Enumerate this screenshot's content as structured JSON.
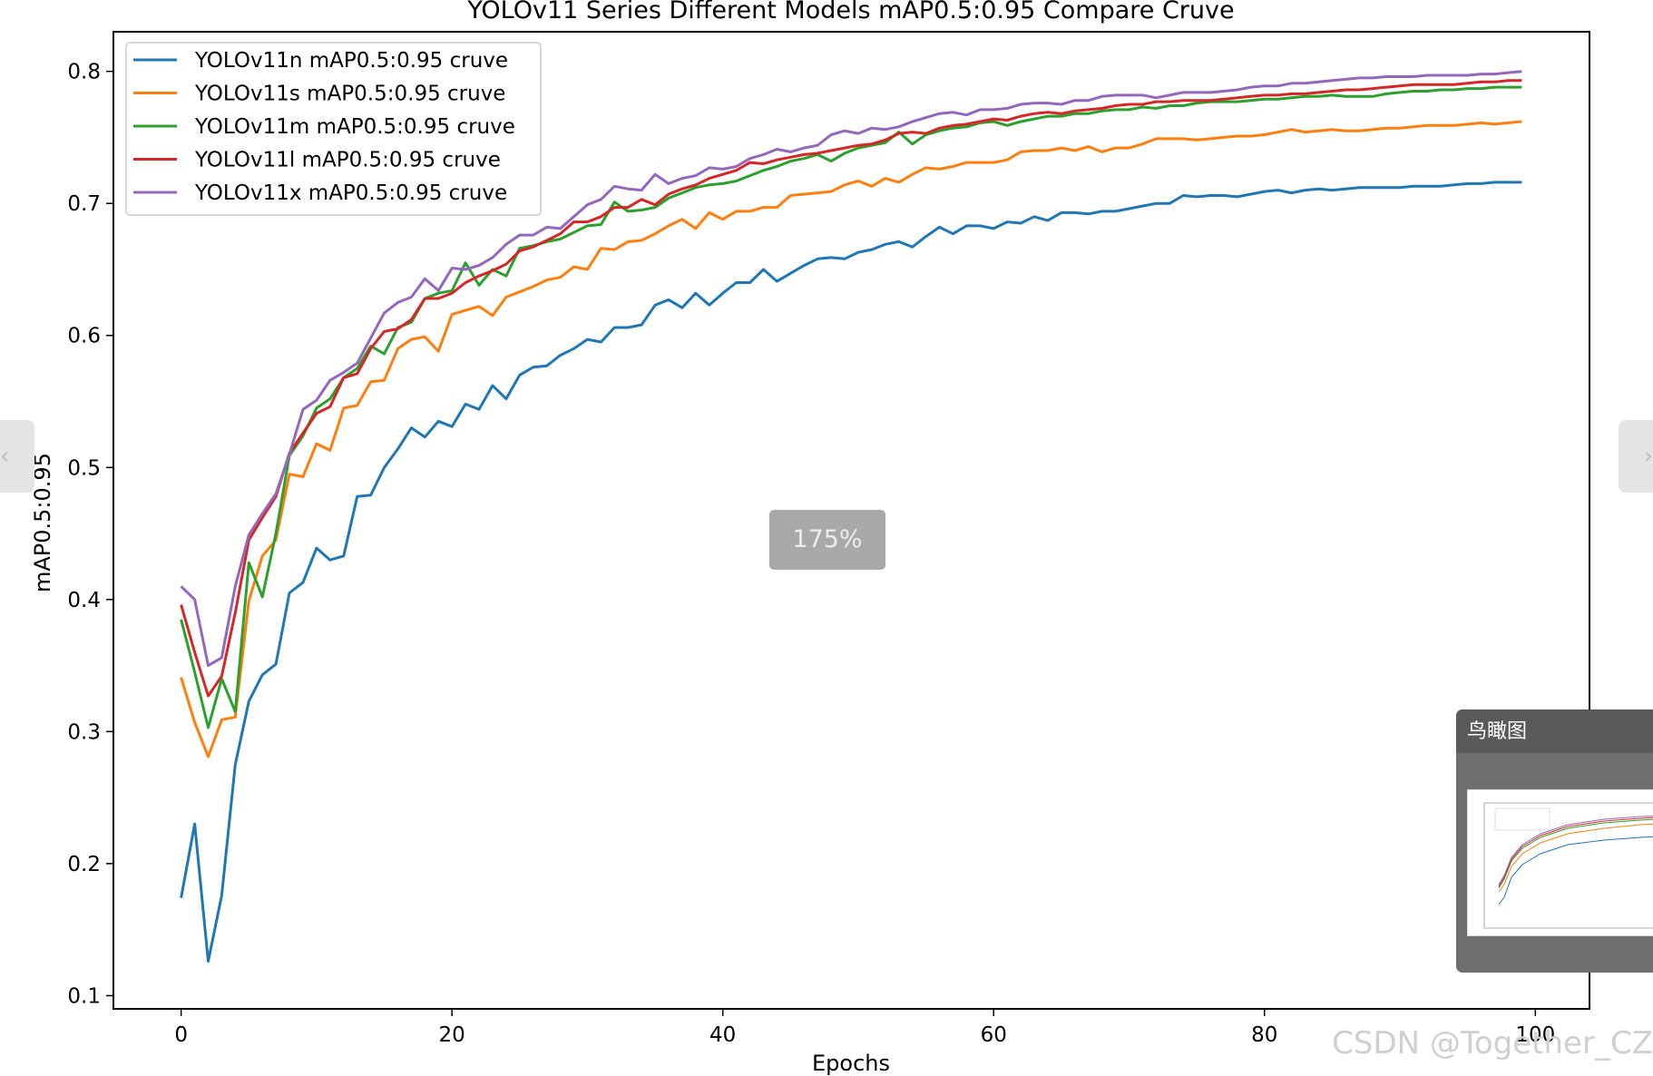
{
  "chart_data": {
    "type": "line",
    "title": "YOLOv11 Series Different Models mAP0.5:0.95 Compare Cruve",
    "xlabel": "Epochs",
    "ylabel": "mAP0.5:0.95",
    "xlim": [
      -5,
      104
    ],
    "ylim": [
      0.09,
      0.83
    ],
    "xticks": [
      0,
      20,
      40,
      60,
      80,
      100
    ],
    "yticks": [
      0.1,
      0.2,
      0.3,
      0.4,
      0.5,
      0.6,
      0.7,
      0.8
    ],
    "xtick_labels": [
      "0",
      "20",
      "40",
      "60",
      "80",
      "100"
    ],
    "ytick_labels": [
      "0.1",
      "0.2",
      "0.3",
      "0.4",
      "0.5",
      "0.6",
      "0.7",
      "0.8"
    ],
    "grid": false,
    "legend_position": "upper-left",
    "series": [
      {
        "name": "YOLOv11n mAP0.5:0.95 cruve",
        "color": "#1f77b4",
        "values": [
          0.174,
          0.23,
          0.126,
          0.176,
          0.275,
          0.323,
          0.343,
          0.351,
          0.405,
          0.413,
          0.439,
          0.43,
          0.433,
          0.478,
          0.479,
          0.5,
          0.514,
          0.53,
          0.523,
          0.535,
          0.531,
          0.548,
          0.544,
          0.562,
          0.552,
          0.57,
          0.576,
          0.577,
          0.585,
          0.59,
          0.597,
          0.595,
          0.606,
          0.606,
          0.608,
          0.623,
          0.627,
          0.621,
          0.632,
          0.623,
          0.632,
          0.64,
          0.64,
          0.65,
          0.641,
          0.647,
          0.653,
          0.658,
          0.659,
          0.658,
          0.663,
          0.665,
          0.669,
          0.671,
          0.667,
          0.675,
          0.682,
          0.677,
          0.683,
          0.683,
          0.681,
          0.686,
          0.685,
          0.69,
          0.687,
          0.693,
          0.693,
          0.692,
          0.694,
          0.694,
          0.696,
          0.698,
          0.7,
          0.7,
          0.706,
          0.705,
          0.706,
          0.706,
          0.705,
          0.707,
          0.709,
          0.71,
          0.708,
          0.71,
          0.711,
          0.71,
          0.711,
          0.712,
          0.712,
          0.712,
          0.712,
          0.713,
          0.713,
          0.713,
          0.714,
          0.715,
          0.715,
          0.716,
          0.716,
          0.716
        ]
      },
      {
        "name": "YOLOv11s mAP0.5:0.95 cruve",
        "color": "#ff7f0e",
        "values": [
          0.341,
          0.307,
          0.281,
          0.309,
          0.311,
          0.399,
          0.433,
          0.445,
          0.495,
          0.493,
          0.518,
          0.513,
          0.545,
          0.547,
          0.565,
          0.566,
          0.59,
          0.597,
          0.599,
          0.588,
          0.616,
          0.619,
          0.622,
          0.615,
          0.629,
          0.633,
          0.637,
          0.642,
          0.644,
          0.652,
          0.65,
          0.666,
          0.665,
          0.671,
          0.672,
          0.677,
          0.683,
          0.688,
          0.681,
          0.693,
          0.688,
          0.694,
          0.694,
          0.697,
          0.697,
          0.706,
          0.707,
          0.708,
          0.709,
          0.714,
          0.717,
          0.713,
          0.719,
          0.716,
          0.722,
          0.727,
          0.726,
          0.728,
          0.731,
          0.731,
          0.731,
          0.733,
          0.739,
          0.74,
          0.74,
          0.742,
          0.74,
          0.743,
          0.739,
          0.742,
          0.742,
          0.745,
          0.749,
          0.749,
          0.749,
          0.748,
          0.749,
          0.75,
          0.751,
          0.751,
          0.752,
          0.754,
          0.756,
          0.754,
          0.755,
          0.756,
          0.755,
          0.755,
          0.756,
          0.757,
          0.757,
          0.758,
          0.759,
          0.759,
          0.759,
          0.76,
          0.761,
          0.76,
          0.761,
          0.762
        ]
      },
      {
        "name": "YOLOv11m mAP0.5:0.95 cruve",
        "color": "#2ca02c",
        "values": [
          0.385,
          0.345,
          0.303,
          0.34,
          0.315,
          0.428,
          0.402,
          0.45,
          0.509,
          0.524,
          0.545,
          0.552,
          0.568,
          0.575,
          0.592,
          0.586,
          0.606,
          0.61,
          0.628,
          0.632,
          0.634,
          0.655,
          0.638,
          0.65,
          0.645,
          0.666,
          0.668,
          0.671,
          0.673,
          0.678,
          0.683,
          0.684,
          0.701,
          0.694,
          0.695,
          0.697,
          0.704,
          0.708,
          0.712,
          0.714,
          0.715,
          0.717,
          0.721,
          0.725,
          0.728,
          0.732,
          0.734,
          0.737,
          0.732,
          0.738,
          0.742,
          0.744,
          0.746,
          0.754,
          0.745,
          0.752,
          0.755,
          0.757,
          0.758,
          0.761,
          0.762,
          0.759,
          0.762,
          0.764,
          0.766,
          0.766,
          0.768,
          0.768,
          0.77,
          0.771,
          0.771,
          0.773,
          0.772,
          0.774,
          0.774,
          0.776,
          0.777,
          0.777,
          0.777,
          0.778,
          0.779,
          0.779,
          0.78,
          0.781,
          0.781,
          0.782,
          0.781,
          0.781,
          0.781,
          0.783,
          0.784,
          0.785,
          0.785,
          0.786,
          0.786,
          0.787,
          0.787,
          0.788,
          0.788,
          0.788
        ]
      },
      {
        "name": "YOLOv11l mAP0.5:0.95 cruve",
        "color": "#d62728",
        "values": [
          0.396,
          0.36,
          0.327,
          0.342,
          0.39,
          0.445,
          0.462,
          0.478,
          0.511,
          0.526,
          0.541,
          0.546,
          0.568,
          0.571,
          0.59,
          0.603,
          0.605,
          0.612,
          0.628,
          0.628,
          0.632,
          0.64,
          0.645,
          0.649,
          0.654,
          0.664,
          0.667,
          0.672,
          0.677,
          0.686,
          0.686,
          0.69,
          0.697,
          0.697,
          0.703,
          0.699,
          0.707,
          0.711,
          0.714,
          0.719,
          0.722,
          0.725,
          0.731,
          0.73,
          0.733,
          0.735,
          0.737,
          0.738,
          0.74,
          0.742,
          0.744,
          0.745,
          0.748,
          0.753,
          0.754,
          0.753,
          0.757,
          0.759,
          0.76,
          0.762,
          0.764,
          0.763,
          0.766,
          0.768,
          0.769,
          0.768,
          0.77,
          0.771,
          0.772,
          0.774,
          0.775,
          0.775,
          0.777,
          0.777,
          0.778,
          0.778,
          0.778,
          0.779,
          0.78,
          0.781,
          0.782,
          0.782,
          0.783,
          0.783,
          0.784,
          0.785,
          0.786,
          0.786,
          0.787,
          0.788,
          0.789,
          0.79,
          0.79,
          0.79,
          0.79,
          0.791,
          0.792,
          0.792,
          0.793,
          0.793
        ]
      },
      {
        "name": "YOLOv11x mAP0.5:0.95 cruve",
        "color": "#9467bd",
        "values": [
          0.41,
          0.4,
          0.35,
          0.356,
          0.41,
          0.449,
          0.465,
          0.48,
          0.51,
          0.544,
          0.551,
          0.566,
          0.572,
          0.579,
          0.598,
          0.617,
          0.625,
          0.629,
          0.643,
          0.634,
          0.651,
          0.65,
          0.653,
          0.659,
          0.669,
          0.676,
          0.676,
          0.682,
          0.681,
          0.69,
          0.699,
          0.703,
          0.713,
          0.711,
          0.71,
          0.722,
          0.715,
          0.719,
          0.721,
          0.727,
          0.726,
          0.728,
          0.734,
          0.737,
          0.741,
          0.739,
          0.742,
          0.744,
          0.752,
          0.755,
          0.753,
          0.757,
          0.756,
          0.758,
          0.762,
          0.765,
          0.768,
          0.769,
          0.767,
          0.771,
          0.771,
          0.772,
          0.775,
          0.776,
          0.776,
          0.775,
          0.778,
          0.778,
          0.781,
          0.782,
          0.782,
          0.782,
          0.78,
          0.782,
          0.784,
          0.784,
          0.784,
          0.785,
          0.786,
          0.788,
          0.789,
          0.789,
          0.791,
          0.791,
          0.792,
          0.793,
          0.794,
          0.795,
          0.795,
          0.796,
          0.796,
          0.796,
          0.797,
          0.797,
          0.797,
          0.797,
          0.798,
          0.798,
          0.799,
          0.8
        ]
      }
    ]
  },
  "viewer": {
    "zoom_label": "175%",
    "prev_icon": "‹",
    "next_icon": "›",
    "birdseye_title": "鸟瞰图",
    "watermark": "CSDN @Together_CZ"
  }
}
